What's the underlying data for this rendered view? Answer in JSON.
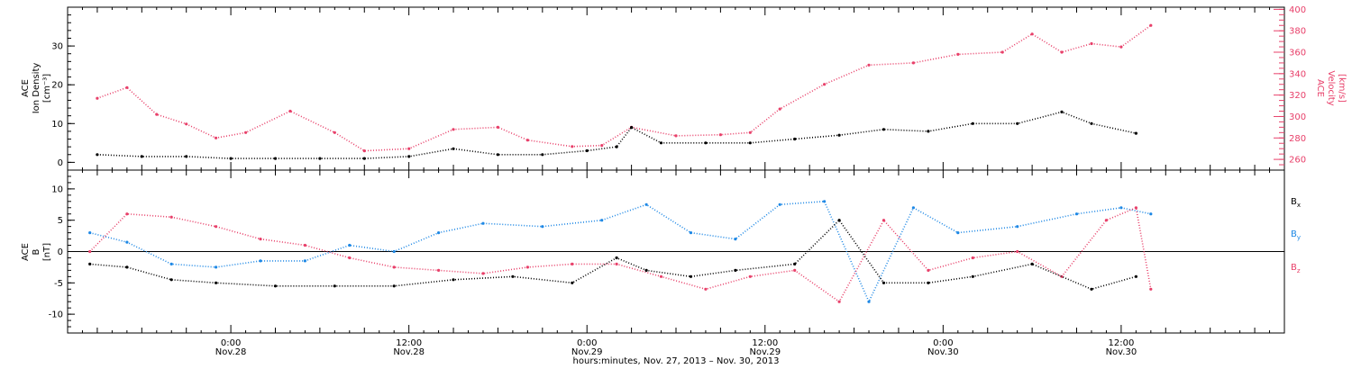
{
  "chart_data": [
    {
      "type": "scatter",
      "title": "",
      "ylabel_left": [
        "ACE",
        "Ion Density",
        "[cm⁻³]"
      ],
      "ylabel_right": [
        "ACE",
        "Velocity",
        "[km/s]"
      ],
      "ylim_left": [
        -2,
        40
      ],
      "ylim_right": [
        250,
        402
      ],
      "yticks_left": [
        "0",
        "10",
        "20",
        "30"
      ],
      "yticks_right": [
        "260",
        "280",
        "300",
        "320",
        "340",
        "360",
        "380",
        "400"
      ],
      "series": [
        {
          "color": "#000000",
          "axis": "left",
          "x": [
            "Nov. 27 15:00",
            "Nov. 27 18:00",
            "Nov. 27 21:00",
            "Nov. 28 00:00",
            "Nov. 28 03:00",
            "Nov. 28 06:00",
            "Nov. 28 09:00",
            "Nov. 28 12:00",
            "Nov. 28 15:00",
            "Nov. 28 18:00",
            "Nov. 28 21:00",
            "Nov. 29 00:00",
            "Nov. 29 02:00",
            "Nov. 29 03:00",
            "Nov. 29 05:00",
            "Nov. 29 08:00",
            "Nov. 29 11:00",
            "Nov. 29 14:00",
            "Nov. 29 17:00",
            "Nov. 29 20:00",
            "Nov. 29 23:00",
            "Nov. 30 02:00",
            "Nov. 30 05:00",
            "Nov. 30 08:00",
            "Nov. 30 10:00",
            "Nov. 30 13:00"
          ],
          "values": [
            2.0,
            1.5,
            1.5,
            1.0,
            1.0,
            1.0,
            1.0,
            1.5,
            3.5,
            2.0,
            2.0,
            3.0,
            4.0,
            9.0,
            5.0,
            5.0,
            5.0,
            6.0,
            7.0,
            8.5,
            8.0,
            10.0,
            10.0,
            13.0,
            10.0,
            7.5
          ]
        },
        {
          "color": "#e8406a",
          "axis": "right",
          "x": [
            "Nov. 27 15:00",
            "Nov. 27 17:00",
            "Nov. 27 19:00",
            "Nov. 27 21:00",
            "Nov. 27 23:00",
            "Nov. 28 01:00",
            "Nov. 28 04:00",
            "Nov. 28 07:00",
            "Nov. 28 09:00",
            "Nov. 28 12:00",
            "Nov. 28 15:00",
            "Nov. 28 18:00",
            "Nov. 28 20:00",
            "Nov. 28 23:00",
            "Nov. 29 01:00",
            "Nov. 29 03:00",
            "Nov. 29 06:00",
            "Nov. 29 09:00",
            "Nov. 29 11:00",
            "Nov. 29 13:00",
            "Nov. 29 16:00",
            "Nov. 29 19:00",
            "Nov. 29 22:00",
            "Nov. 30 01:00",
            "Nov. 30 04:00",
            "Nov. 30 06:00",
            "Nov. 30 08:00",
            "Nov. 30 10:00",
            "Nov. 30 12:00",
            "Nov. 30 14:00"
          ],
          "values": [
            317,
            327,
            302,
            293,
            280,
            285,
            305,
            285,
            268,
            270,
            288,
            290,
            278,
            272,
            273,
            290,
            282,
            283,
            285,
            307,
            330,
            348,
            350,
            358,
            360,
            377,
            360,
            368,
            365,
            385
          ]
        }
      ]
    },
    {
      "type": "scatter",
      "title": "",
      "ylabel": [
        "ACE",
        "B",
        "[nT]"
      ],
      "ylim": [
        -13,
        13
      ],
      "yticks": [
        "-10",
        "-5",
        "0",
        "5",
        "10"
      ],
      "xlabel": "hours:minutes, Nov. 27, 2013 – Nov. 30, 2013",
      "xticks": [
        {
          "time": "0:00",
          "date": "Nov.28"
        },
        {
          "time": "12:00",
          "date": "Nov.28"
        },
        {
          "time": "0:00",
          "date": "Nov.29"
        },
        {
          "time": "12:00",
          "date": "Nov.29"
        },
        {
          "time": "0:00",
          "date": "Nov.30"
        },
        {
          "time": "12:00",
          "date": "Nov.30"
        }
      ],
      "series": [
        {
          "name": "Bx",
          "color": "#000000",
          "x": [
            "Nov. 27 14:30",
            "Nov. 27 17:00",
            "Nov. 27 20:00",
            "Nov. 27 23:00",
            "Nov. 28 03:00",
            "Nov. 28 07:00",
            "Nov. 28 11:00",
            "Nov. 28 15:00",
            "Nov. 28 19:00",
            "Nov. 28 23:00",
            "Nov. 29 02:00",
            "Nov. 29 04:00",
            "Nov. 29 07:00",
            "Nov. 29 10:00",
            "Nov. 29 14:00",
            "Nov. 29 17:00",
            "Nov. 29 20:00",
            "Nov. 29 23:00",
            "Nov. 30 02:00",
            "Nov. 30 06:00",
            "Nov. 30 10:00",
            "Nov. 30 13:00"
          ],
          "values": [
            -2,
            -2.5,
            -4.5,
            -5,
            -5.5,
            -5.5,
            -5.5,
            -4.5,
            -4,
            -5,
            -1,
            -3,
            -4,
            -3,
            -2,
            5,
            -5,
            -5,
            -4,
            -2,
            -6,
            -4
          ]
        },
        {
          "name": "By",
          "color": "#1e88e5",
          "x": [
            "Nov. 27 14:30",
            "Nov. 27 17:00",
            "Nov. 27 20:00",
            "Nov. 27 23:00",
            "Nov. 28 02:00",
            "Nov. 28 05:00",
            "Nov. 28 08:00",
            "Nov. 28 11:00",
            "Nov. 28 14:00",
            "Nov. 28 17:00",
            "Nov. 28 21:00",
            "Nov. 29 01:00",
            "Nov. 29 04:00",
            "Nov. 29 07:00",
            "Nov. 29 10:00",
            "Nov. 29 13:00",
            "Nov. 29 16:00",
            "Nov. 29 19:00",
            "Nov. 29 22:00",
            "Nov. 30 01:00",
            "Nov. 30 05:00",
            "Nov. 30 09:00",
            "Nov. 30 12:00",
            "Nov. 30 14:00"
          ],
          "values": [
            3,
            1.5,
            -2,
            -2.5,
            -1.5,
            -1.5,
            1,
            0,
            3,
            4.5,
            4,
            5,
            7.5,
            3,
            2,
            7.5,
            8,
            -8,
            7,
            3,
            4,
            6,
            7,
            6
          ]
        },
        {
          "name": "Bz",
          "color": "#e8406a",
          "x": [
            "Nov. 27 14:30",
            "Nov. 27 17:00",
            "Nov. 27 20:00",
            "Nov. 27 23:00",
            "Nov. 28 02:00",
            "Nov. 28 05:00",
            "Nov. 28 08:00",
            "Nov. 28 11:00",
            "Nov. 28 14:00",
            "Nov. 28 17:00",
            "Nov. 28 20:00",
            "Nov. 28 23:00",
            "Nov. 29 02:00",
            "Nov. 29 05:00",
            "Nov. 29 08:00",
            "Nov. 29 11:00",
            "Nov. 29 14:00",
            "Nov. 29 17:00",
            "Nov. 29 20:00",
            "Nov. 29 23:00",
            "Nov. 30 02:00",
            "Nov. 30 05:00",
            "Nov. 30 08:00",
            "Nov. 30 11:00",
            "Nov. 30 13:00",
            "Nov. 30 14:00"
          ],
          "values": [
            0,
            6,
            5.5,
            4,
            2,
            1,
            -1,
            -2.5,
            -3,
            -3.5,
            -2.5,
            -2,
            -2,
            -4,
            -6,
            -4,
            -3,
            -8,
            5,
            -3,
            -1,
            0,
            -4,
            5,
            7,
            -6
          ]
        }
      ]
    }
  ]
}
